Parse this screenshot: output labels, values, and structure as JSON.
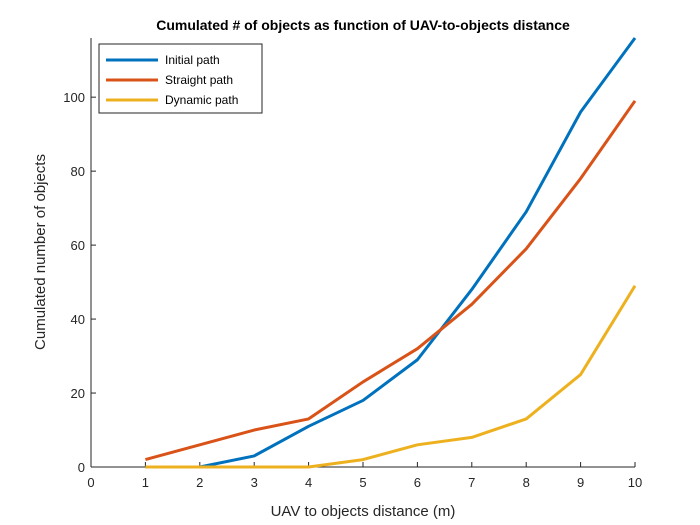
{
  "chart_data": {
    "type": "line",
    "title": "Cumulated # of objects as function of UAV-to-objects distance",
    "xlabel": "UAV to objects distance (m)",
    "ylabel": "Cumulated number of objects",
    "xlim": [
      0,
      10
    ],
    "ylim": [
      0,
      116
    ],
    "xticks": [
      0,
      1,
      2,
      3,
      4,
      5,
      6,
      7,
      8,
      9,
      10
    ],
    "yticks": [
      0,
      20,
      40,
      60,
      80,
      100
    ],
    "grid": false,
    "legend_position": "top-left",
    "x": [
      1,
      2,
      3,
      4,
      5,
      6,
      7,
      8,
      9,
      10
    ],
    "series": [
      {
        "name": "Initial path",
        "color": "#0072BD",
        "values": [
          0,
          0,
          3,
          11,
          18,
          29,
          48,
          69,
          96,
          116
        ]
      },
      {
        "name": "Straight path",
        "color": "#D95319",
        "values": [
          2,
          6,
          10,
          13,
          23,
          32,
          44,
          59,
          78,
          99
        ]
      },
      {
        "name": "Dynamic path",
        "color": "#EDB120",
        "values": [
          0,
          0,
          0,
          0,
          2,
          6,
          8,
          13,
          25,
          49
        ]
      }
    ]
  }
}
